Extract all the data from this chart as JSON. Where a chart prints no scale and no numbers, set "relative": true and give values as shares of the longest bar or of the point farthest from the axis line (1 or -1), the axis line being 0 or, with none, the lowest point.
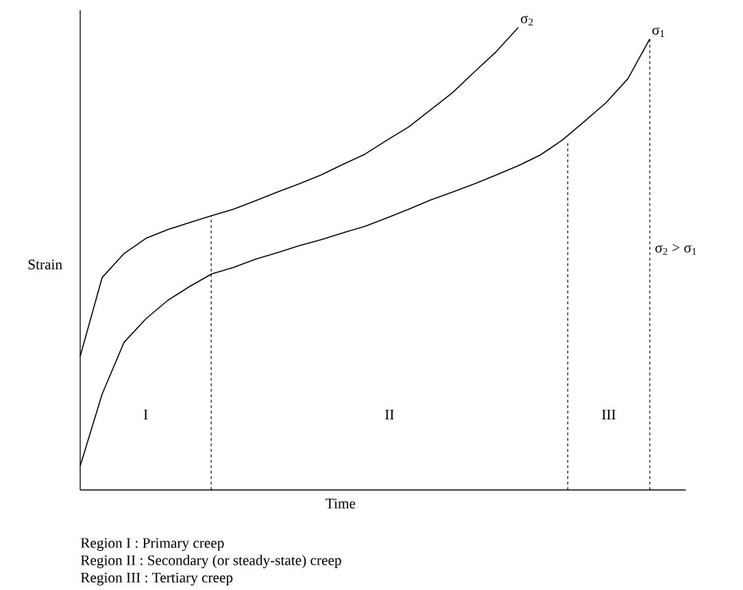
{
  "chart_data": {
    "type": "line",
    "relative": true,
    "xlabel": "Time",
    "ylabel": "Strain",
    "categories": [
      null,
      null,
      null,
      null,
      null,
      null,
      null,
      null,
      null,
      null,
      null,
      null,
      null,
      null,
      null,
      null,
      null,
      null,
      null,
      null,
      null,
      null,
      null,
      null,
      null,
      null,
      null
    ],
    "series": [
      {
        "name": "σ$_{2}$",
        "color": "#000000",
        "values": [
          0.289,
          0.459,
          0.511,
          0.544,
          0.563,
          0.578,
          0.593,
          0.607,
          0.625,
          0.644,
          0.662,
          0.681,
          0.704,
          0.726,
          0.756,
          0.785,
          0.822,
          0.859,
          0.904,
          0.948,
          1.0,
          null,
          null,
          null,
          null,
          null,
          null
        ]
      },
      {
        "name": "σ$_{1}$",
        "color": "#000000",
        "values": [
          0.052,
          0.207,
          0.319,
          0.37,
          0.41,
          0.44,
          0.467,
          0.481,
          0.499,
          0.513,
          0.528,
          0.541,
          0.556,
          0.57,
          0.588,
          0.607,
          0.627,
          0.644,
          0.662,
          0.681,
          0.701,
          0.724,
          0.756,
          0.796,
          0.837,
          0.889,
          0.975
        ]
      }
    ],
    "annotations": [
      "I",
      "II",
      "III",
      "σ$_{2}$ > σ$_{1}$",
      "Region I : Primary creep",
      "Region II : Secondary (or steady-state) creep",
      "Region III : Tertiary creep"
    ]
  }
}
